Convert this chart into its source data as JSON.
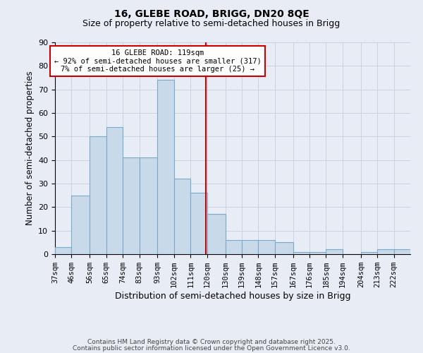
{
  "title1": "16, GLEBE ROAD, BRIGG, DN20 8QE",
  "title2": "Size of property relative to semi-detached houses in Brigg",
  "xlabel": "Distribution of semi-detached houses by size in Brigg",
  "ylabel": "Number of semi-detached properties",
  "categories": [
    "37sqm",
    "46sqm",
    "56sqm",
    "65sqm",
    "74sqm",
    "83sqm",
    "93sqm",
    "102sqm",
    "111sqm",
    "120sqm",
    "130sqm",
    "139sqm",
    "148sqm",
    "157sqm",
    "167sqm",
    "176sqm",
    "185sqm",
    "194sqm",
    "204sqm",
    "213sqm",
    "222sqm"
  ],
  "values": [
    3,
    25,
    50,
    54,
    41,
    41,
    74,
    32,
    26,
    17,
    6,
    6,
    6,
    5,
    1,
    1,
    2,
    0,
    1,
    2,
    2
  ],
  "bar_color": "#c8d9ea",
  "bar_edge_color": "#7aaac8",
  "vline_color": "#cc0000",
  "annotation_box_color": "#cc0000",
  "annotation_box_bg": "#ffffff",
  "grid_color": "#c5cfe0",
  "bg_color": "#e8edf5",
  "ylim": [
    0,
    90
  ],
  "yticks": [
    0,
    10,
    20,
    30,
    40,
    50,
    60,
    70,
    80,
    90
  ],
  "footnote1": "Contains HM Land Registry data © Crown copyright and database right 2025.",
  "footnote2": "Contains public sector information licensed under the Open Government Licence v3.0.",
  "bin_starts": [
    37,
    46,
    56,
    65,
    74,
    83,
    93,
    102,
    111,
    120,
    130,
    139,
    148,
    157,
    167,
    176,
    185,
    194,
    204,
    213,
    222
  ],
  "vline_x": 119.5
}
